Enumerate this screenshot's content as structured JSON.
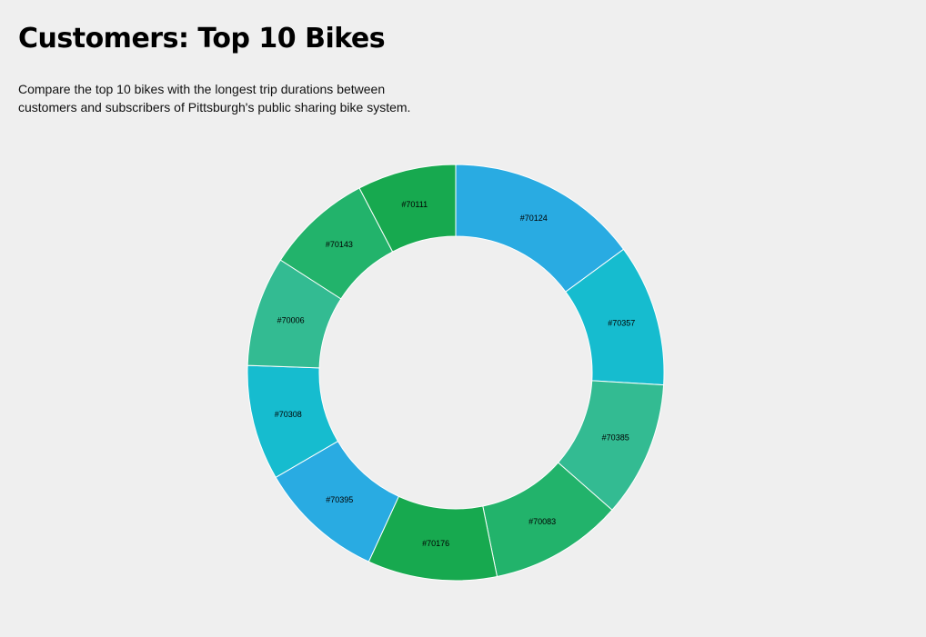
{
  "header": {
    "title": "Customers: Top 10 Bikes",
    "description": "Compare the top 10 bikes with the longest trip durations between customers and subscribers of Pittsburgh's public sharing bike system."
  },
  "chart_data": {
    "type": "pie",
    "donut": true,
    "labels": [
      "#70124",
      "#70357",
      "#70385",
      "#70083",
      "#70176",
      "#70395",
      "#70308",
      "#70006",
      "#70143",
      "#70111"
    ],
    "values": [
      15.0,
      11.1,
      10.6,
      10.4,
      10.1,
      9.8,
      9.0,
      8.6,
      8.3,
      7.7
    ],
    "colors": [
      "#29abe2",
      "#16bccf",
      "#33bb92",
      "#22b36b",
      "#17a94f",
      "#29abe2",
      "#16bccf",
      "#33bb92",
      "#22b36b",
      "#17a94f"
    ],
    "legend": "none"
  }
}
